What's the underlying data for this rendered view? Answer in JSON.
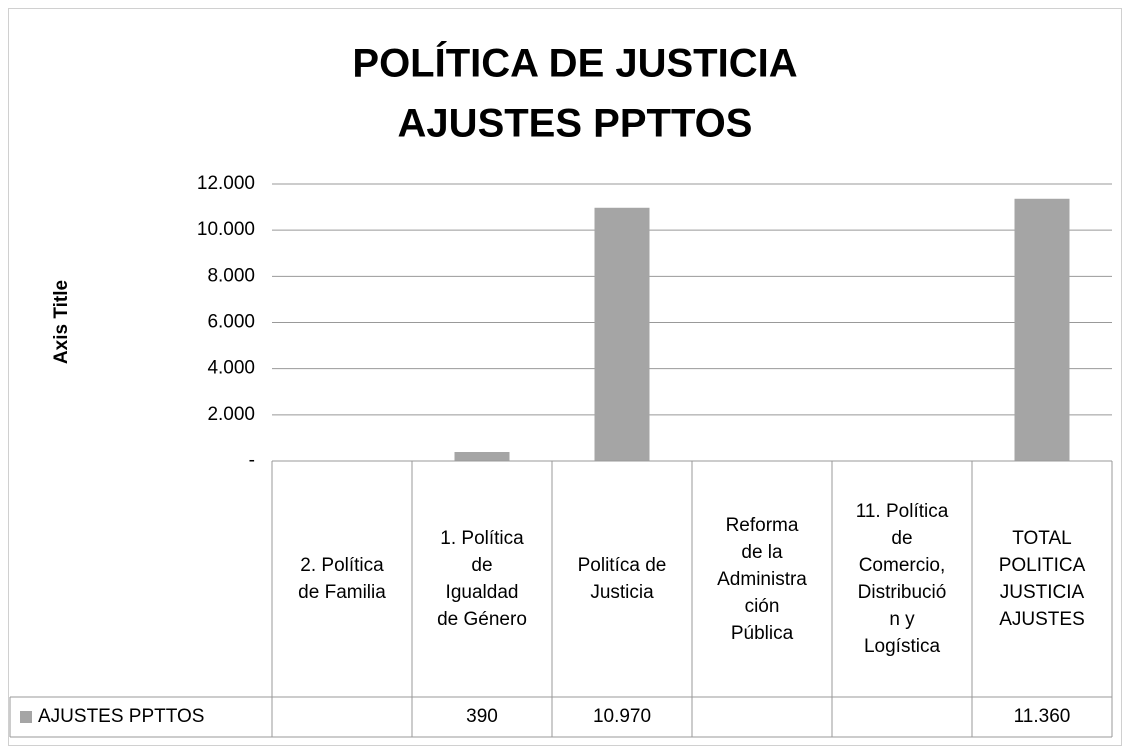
{
  "chart_data": {
    "type": "bar",
    "title": [
      "POLÍTICA DE JUSTICIA",
      "AJUSTES PPTTOS"
    ],
    "y_axis_label": "Axis Title",
    "categories": [
      "2. Política de Familia",
      "1. Política de Igualdad de Género",
      "Politíca de Justicia",
      "Reforma de la Administración Pública",
      "11. Política de Comercio, Distribución y Logística",
      "TOTAL POLITICA JUSTICIA AJUSTES"
    ],
    "series": [
      {
        "name": "AJUSTES PPTTOS",
        "color": "#a5a5a5",
        "values": [
          null,
          390,
          10970,
          null,
          null,
          11360
        ],
        "value_labels": [
          null,
          "390",
          "10.970",
          null,
          null,
          "11.360"
        ]
      }
    ],
    "ylim": [
      0,
      12000
    ],
    "yticks": [
      {
        "value": 0,
        "label": "-"
      },
      {
        "value": 2000,
        "label": "2.000"
      },
      {
        "value": 4000,
        "label": "4.000"
      },
      {
        "value": 6000,
        "label": "6.000"
      },
      {
        "value": 8000,
        "label": "8.000"
      },
      {
        "value": 10000,
        "label": "10.000"
      },
      {
        "value": 12000,
        "label": "12.000"
      }
    ],
    "grid": true
  }
}
